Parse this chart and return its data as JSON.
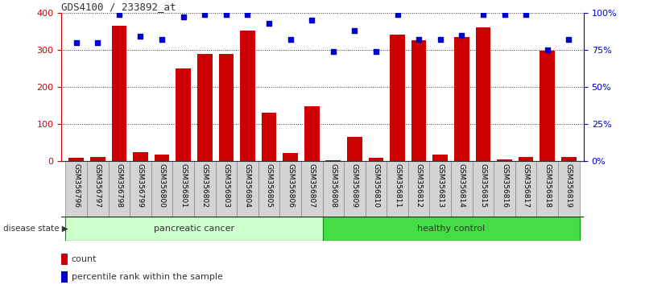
{
  "title": "GDS4100 / 233892_at",
  "samples": [
    "GSM356796",
    "GSM356797",
    "GSM356798",
    "GSM356799",
    "GSM356800",
    "GSM356801",
    "GSM356802",
    "GSM356803",
    "GSM356804",
    "GSM356805",
    "GSM356806",
    "GSM356807",
    "GSM356808",
    "GSM356809",
    "GSM356810",
    "GSM356811",
    "GSM356812",
    "GSM356813",
    "GSM356814",
    "GSM356815",
    "GSM356816",
    "GSM356817",
    "GSM356818",
    "GSM356819"
  ],
  "counts": [
    8,
    10,
    365,
    25,
    18,
    250,
    288,
    288,
    352,
    130,
    22,
    148,
    2,
    65,
    8,
    342,
    325,
    18,
    335,
    360,
    4,
    10,
    298,
    10
  ],
  "percentiles": [
    80,
    80,
    99,
    84,
    82,
    97,
    99,
    99,
    99,
    93,
    82,
    95,
    74,
    88,
    74,
    99,
    82,
    82,
    85,
    99,
    99,
    99,
    75,
    82
  ],
  "pancreatic_count": 12,
  "healthy_count": 12,
  "bar_color": "#CC0000",
  "dot_color": "#0000CC",
  "ylim_left": [
    0,
    400
  ],
  "ylim_right": [
    0,
    100
  ],
  "yticks_left": [
    0,
    100,
    200,
    300,
    400
  ],
  "yticks_right": [
    0,
    25,
    50,
    75,
    100
  ],
  "ytick_labels_right": [
    "0",
    "25",
    "50",
    "75",
    "100%"
  ],
  "grid_color": "#000000",
  "background_color": "#ffffff",
  "xticklabel_bg": "#d8d8d8",
  "xticklabel_border": "#888888",
  "pc_band_color": "#ccffcc",
  "hc_band_color": "#44cc44",
  "band_border_color": "#006600",
  "legend_count_label": "count",
  "legend_pct_label": "percentile rank within the sample",
  "disease_state_label": "disease state"
}
